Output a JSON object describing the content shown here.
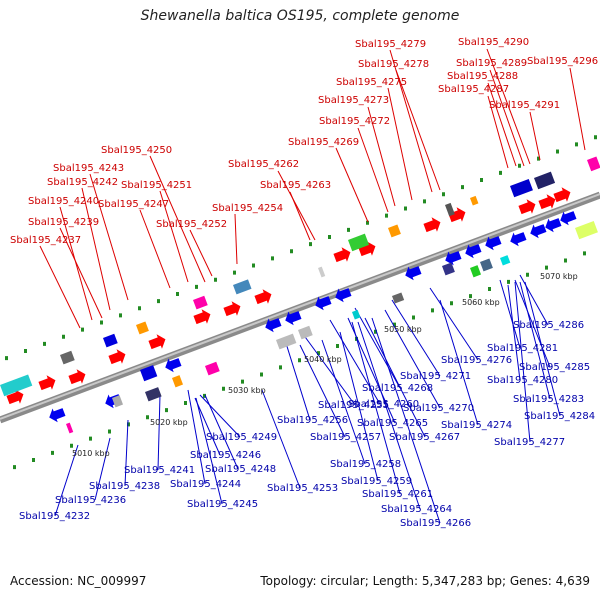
{
  "title": "Shewanella baltica OS195, complete genome",
  "footer": {
    "accession": "Accession: NC_009997",
    "info": "Topology: circular; Length: 5,347,283 bp; Genes: 4,639"
  },
  "colors": {
    "forward": "#ff0000",
    "reverse": "#0000ee",
    "top_label": "#cc0000",
    "bottom_label": "#0000aa",
    "backbone": "#999999"
  },
  "kbp_labels": [
    "5010 kbp",
    "5020 kbp",
    "5030 kbp",
    "5040 kbp",
    "5050 kbp",
    "5060 kbp",
    "5070 kbp"
  ],
  "top_labels": [
    "Sbal195_4279",
    "Sbal195_4290",
    "Sbal195_4278",
    "Sbal195_4289",
    "Sbal195_4296",
    "Sbal195_4288",
    "Sbal195_4275",
    "Sbal195_4287",
    "Sbal195_4273",
    "Sbal195_4291",
    "Sbal195_4272",
    "Sbal195_4269",
    "Sbal195_4250",
    "Sbal195_4262",
    "Sbal195_4243",
    "Sbal195_4242",
    "Sbal195_4251",
    "Sbal195_4263",
    "Sbal195_4240",
    "Sbal195_4247",
    "Sbal195_4254",
    "Sbal195_4239",
    "Sbal195_4252",
    "Sbal195_4237"
  ],
  "bottom_labels": [
    "Sbal195_4286",
    "Sbal195_4281",
    "Sbal195_4276",
    "Sbal195_4285",
    "Sbal195_4271",
    "Sbal195_4280",
    "Sbal195_4268",
    "Sbal195_4283",
    "Sbal195_4255",
    "Sbal195_4260",
    "Sbal195_4270",
    "Sbal195_4284",
    "Sbal195_4249",
    "Sbal195_4256",
    "Sbal195_4265",
    "Sbal195_4274",
    "Sbal195_4246",
    "Sbal195_4257",
    "Sbal195_4267",
    "Sbal195_4277",
    "Sbal195_4241",
    "Sbal195_4248",
    "Sbal195_4258",
    "Sbal195_4238",
    "Sbal195_4244",
    "Sbal195_4259",
    "Sbal195_4253",
    "Sbal195_4261",
    "Sbal195_4236",
    "Sbal195_4245",
    "Sbal195_4264",
    "Sbal195_4232",
    "Sbal195_4266"
  ]
}
